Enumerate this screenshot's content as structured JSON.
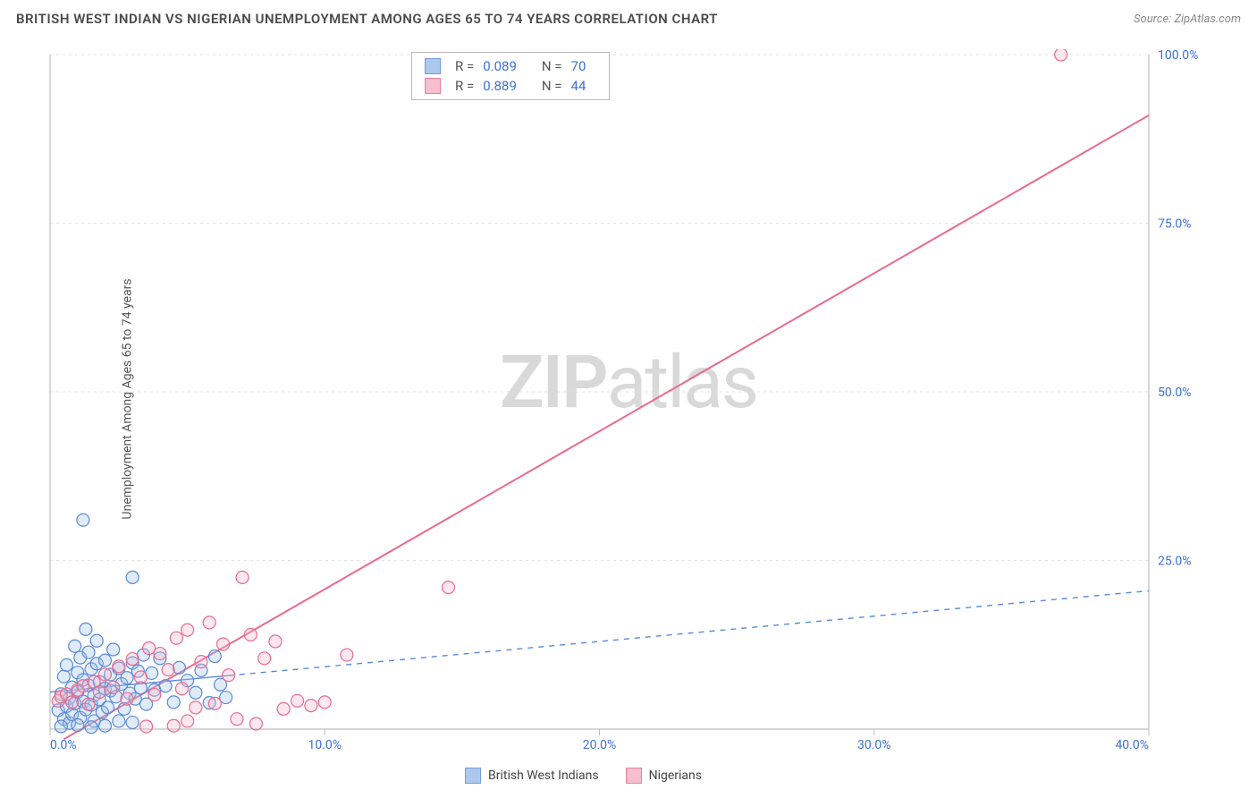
{
  "title": "BRITISH WEST INDIAN VS NIGERIAN UNEMPLOYMENT AMONG AGES 65 TO 74 YEARS CORRELATION CHART",
  "source_prefix": "Source: ",
  "source_name": "ZipAtlas.com",
  "ylabel": "Unemployment Among Ages 65 to 74 years",
  "watermark_a": "ZIP",
  "watermark_b": "atlas",
  "chart": {
    "type": "scatter",
    "xlim": [
      0,
      40
    ],
    "ylim": [
      0,
      100
    ],
    "xtick_step": 10,
    "ytick_step": 25,
    "xtick_labels": [
      "0.0%",
      "10.0%",
      "20.0%",
      "30.0%",
      "40.0%"
    ],
    "ytick_labels": [
      "25.0%",
      "50.0%",
      "75.0%",
      "100.0%"
    ],
    "background_color": "#ffffff",
    "grid_color": "#e2e2e2",
    "grid_dash": "3,4",
    "axis_color": "#bfbfbf",
    "axis_label_color": "#3e6fd8",
    "marker_radius": 7,
    "marker_stroke_width": 1.2,
    "marker_fill_opacity": 0.32,
    "series": [
      {
        "id": "bwi",
        "name": "British West Indians",
        "color_stroke": "#5a8ad6",
        "color_fill": "#9ec0ea",
        "R": "0.089",
        "N": "70",
        "trend": {
          "x1": 0,
          "y1": 5.5,
          "x2": 40,
          "y2": 20.5,
          "style": "dashed",
          "width": 1.4,
          "dash": "6,6",
          "solid_until_x": 6.5
        },
        "points": [
          [
            0.3,
            2.8
          ],
          [
            0.4,
            5.2
          ],
          [
            0.5,
            1.5
          ],
          [
            0.5,
            7.8
          ],
          [
            0.6,
            3.4
          ],
          [
            0.6,
            9.5
          ],
          [
            0.7,
            0.9
          ],
          [
            0.7,
            4.6
          ],
          [
            0.8,
            6.2
          ],
          [
            0.8,
            2.2
          ],
          [
            0.9,
            12.3
          ],
          [
            0.9,
            3.8
          ],
          [
            1.0,
            8.4
          ],
          [
            1.0,
            5.5
          ],
          [
            1.1,
            1.7
          ],
          [
            1.1,
            10.6
          ],
          [
            1.2,
            4.1
          ],
          [
            1.2,
            7.3
          ],
          [
            1.3,
            2.9
          ],
          [
            1.3,
            14.8
          ],
          [
            1.4,
            6.5
          ],
          [
            1.4,
            11.4
          ],
          [
            1.5,
            3.6
          ],
          [
            1.5,
            8.9
          ],
          [
            1.6,
            5.0
          ],
          [
            1.6,
            1.2
          ],
          [
            1.7,
            9.7
          ],
          [
            1.7,
            13.1
          ],
          [
            1.8,
            4.4
          ],
          [
            1.8,
            7.0
          ],
          [
            1.9,
            2.5
          ],
          [
            2.0,
            10.2
          ],
          [
            2.0,
            6.0
          ],
          [
            2.1,
            3.2
          ],
          [
            2.2,
            8.1
          ],
          [
            2.2,
            5.7
          ],
          [
            2.3,
            11.8
          ],
          [
            2.4,
            4.8
          ],
          [
            2.5,
            9.0
          ],
          [
            2.6,
            6.7
          ],
          [
            2.7,
            3.0
          ],
          [
            2.8,
            7.6
          ],
          [
            2.9,
            5.3
          ],
          [
            3.0,
            22.5
          ],
          [
            3.0,
            9.8
          ],
          [
            3.1,
            4.5
          ],
          [
            3.2,
            8.6
          ],
          [
            3.3,
            6.1
          ],
          [
            3.4,
            11.0
          ],
          [
            3.5,
            3.7
          ],
          [
            1.2,
            31.0
          ],
          [
            3.7,
            8.3
          ],
          [
            3.8,
            5.8
          ],
          [
            4.0,
            10.5
          ],
          [
            4.2,
            6.4
          ],
          [
            4.5,
            4.0
          ],
          [
            4.7,
            9.1
          ],
          [
            5.0,
            7.2
          ],
          [
            5.3,
            5.4
          ],
          [
            5.5,
            8.7
          ],
          [
            5.8,
            3.9
          ],
          [
            6.0,
            10.8
          ],
          [
            6.2,
            6.6
          ],
          [
            6.4,
            4.7
          ],
          [
            2.0,
            0.5
          ],
          [
            1.5,
            0.3
          ],
          [
            3.0,
            1.0
          ],
          [
            0.4,
            0.4
          ],
          [
            1.0,
            0.6
          ],
          [
            2.5,
            1.2
          ]
        ]
      },
      {
        "id": "nig",
        "name": "Nigerians",
        "color_stroke": "#e86a8f",
        "color_fill": "#f4b4c6",
        "R": "0.889",
        "N": "44",
        "trend": {
          "x1": 0.5,
          "y1": -1.5,
          "x2": 40,
          "y2": 91.0,
          "style": "solid",
          "width": 2.0
        },
        "points": [
          [
            0.3,
            4.2
          ],
          [
            0.4,
            4.8
          ],
          [
            0.6,
            5.2
          ],
          [
            0.8,
            4.0
          ],
          [
            1.0,
            5.8
          ],
          [
            1.2,
            6.4
          ],
          [
            1.4,
            3.7
          ],
          [
            1.6,
            7.0
          ],
          [
            1.8,
            5.5
          ],
          [
            2.0,
            8.1
          ],
          [
            2.3,
            6.2
          ],
          [
            2.5,
            9.3
          ],
          [
            2.8,
            4.5
          ],
          [
            3.0,
            10.4
          ],
          [
            3.3,
            7.7
          ],
          [
            3.6,
            12.0
          ],
          [
            3.8,
            5.1
          ],
          [
            4.0,
            11.2
          ],
          [
            4.3,
            8.8
          ],
          [
            4.6,
            13.5
          ],
          [
            4.8,
            6.0
          ],
          [
            5.0,
            14.7
          ],
          [
            5.3,
            3.2
          ],
          [
            5.5,
            10.0
          ],
          [
            5.8,
            15.8
          ],
          [
            6.0,
            3.8
          ],
          [
            6.3,
            12.6
          ],
          [
            6.5,
            8.0
          ],
          [
            7.0,
            22.5
          ],
          [
            7.3,
            14.0
          ],
          [
            7.8,
            10.5
          ],
          [
            8.2,
            13.0
          ],
          [
            8.5,
            3.0
          ],
          [
            9.0,
            4.2
          ],
          [
            9.5,
            3.5
          ],
          [
            10.0,
            4.0
          ],
          [
            10.8,
            11.0
          ],
          [
            14.5,
            21.0
          ],
          [
            36.8,
            100.0
          ],
          [
            4.5,
            0.5
          ],
          [
            5.0,
            1.2
          ],
          [
            7.5,
            0.8
          ],
          [
            6.8,
            1.5
          ],
          [
            3.5,
            0.4
          ]
        ]
      }
    ],
    "bottom_legend": [
      {
        "label": "British West Indians",
        "series": "bwi"
      },
      {
        "label": "Nigerians",
        "series": "nig"
      }
    ],
    "stats_legend_labels": {
      "R": "R =",
      "N": "N ="
    }
  }
}
